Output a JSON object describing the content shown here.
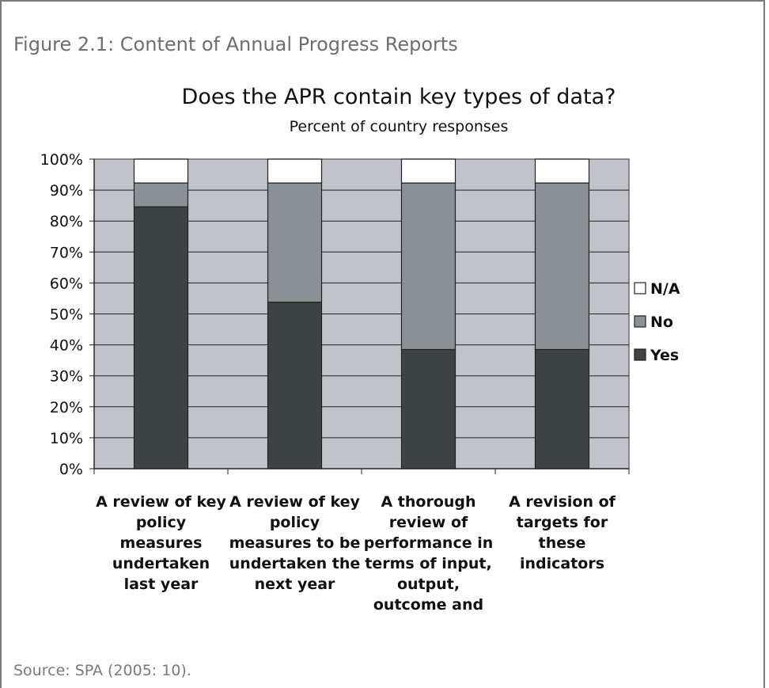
{
  "figure_caption": "Figure 2.1: Content of Annual Progress Reports",
  "source": "Source: SPA (2005: 10).",
  "chart_data": {
    "type": "bar",
    "stacked": true,
    "title": "Does the APR contain key types of data?",
    "subtitle": "Percent of country responses",
    "xlabel": "",
    "ylabel": "",
    "ylim": [
      0,
      100
    ],
    "y_ticks": [
      "0%",
      "10%",
      "20%",
      "30%",
      "40%",
      "50%",
      "60%",
      "70%",
      "80%",
      "90%",
      "100%"
    ],
    "grid": true,
    "legend_position": "right",
    "categories": [
      [
        "A review of key",
        "policy",
        "measures",
        "undertaken",
        "last year"
      ],
      [
        "A review of key",
        "policy",
        "measures to be",
        "undertaken the",
        "next year"
      ],
      [
        "A thorough",
        "review of",
        "performance in",
        "terms of input,",
        "output,",
        "outcome and"
      ],
      [
        "A revision of",
        "targets for",
        "these",
        "indicators"
      ]
    ],
    "series": [
      {
        "name": "Yes",
        "color": "#3d4344",
        "values": [
          84.6,
          53.8,
          38.5,
          38.5
        ]
      },
      {
        "name": "No",
        "color": "#899096",
        "values": [
          7.7,
          38.5,
          53.8,
          53.8
        ]
      },
      {
        "name": "N/A",
        "color": "#ffffff",
        "values": [
          7.7,
          7.7,
          7.7,
          7.7
        ]
      }
    ],
    "legend_order": [
      "N/A",
      "No",
      "Yes"
    ],
    "plot_background": "#c0c3c9"
  }
}
